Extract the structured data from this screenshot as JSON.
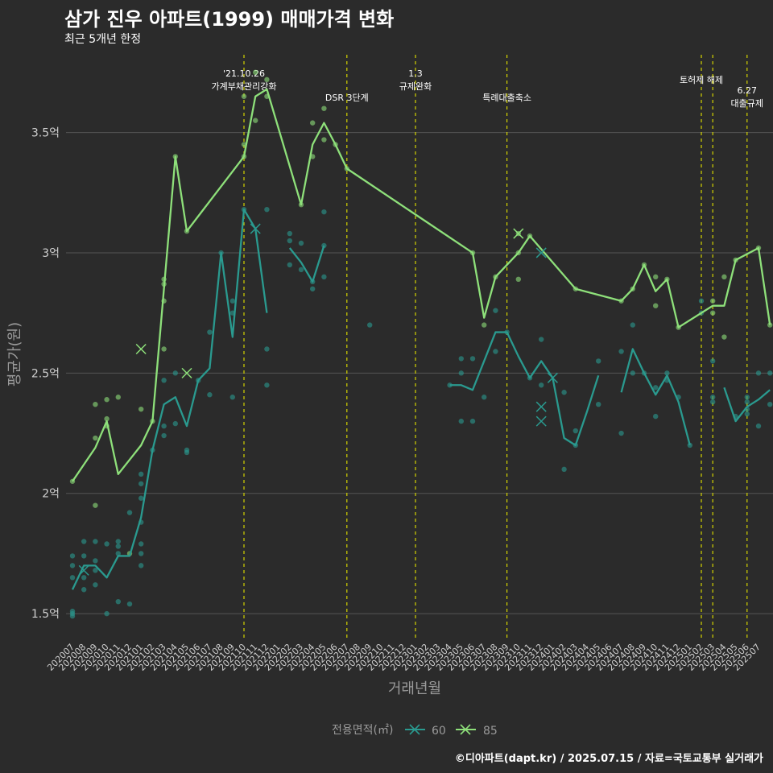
{
  "title": "삼가 진우 아파트(1999) 매매가격 변화",
  "subtitle": "최근 5개년 한정",
  "caption": "©디아파트(dapt.kr) / 2025.07.15 / 자료=국토교통부 실거래가",
  "colors": {
    "background": "#2b2b2b",
    "grid": "#555555",
    "series60": "#2a9a8f",
    "series85": "#8ee07a",
    "event_line": "#d4d400"
  },
  "chart_data": {
    "type": "line",
    "xlabel": "거래년월",
    "ylabel": "평균가(원)",
    "y_unit": "억",
    "ylim": [
      1.4,
      3.85
    ],
    "yticks": [
      1.5,
      2,
      2.5,
      3,
      3.5
    ],
    "ytick_labels": [
      "1.5억",
      "2억",
      "2.5억",
      "3억",
      "3.5억"
    ],
    "grid": true,
    "legend": {
      "title": "전용면적(㎡)",
      "position": "bottom",
      "entries": [
        "60",
        "85"
      ]
    },
    "categories": [
      "202007",
      "202008",
      "202009",
      "202010",
      "202011",
      "202012",
      "202101",
      "202102",
      "202103",
      "202104",
      "202105",
      "202106",
      "202107",
      "202108",
      "202109",
      "202110",
      "202111",
      "202112",
      "202201",
      "202202",
      "202203",
      "202204",
      "202205",
      "202206",
      "202207",
      "202208",
      "202209",
      "202210",
      "202211",
      "202212",
      "202301",
      "202302",
      "202303",
      "202304",
      "202305",
      "202306",
      "202307",
      "202308",
      "202309",
      "202310",
      "202311",
      "202312",
      "202401",
      "202402",
      "202403",
      "202404",
      "202405",
      "202406",
      "202407",
      "202408",
      "202409",
      "202410",
      "202411",
      "202412",
      "202501",
      "202502",
      "202503",
      "202504",
      "202505",
      "202506",
      "202507"
    ],
    "events": [
      {
        "x": "202110",
        "label": "'21.10.26\n가계부채관리강화"
      },
      {
        "x": "202207",
        "label": "DSR 3단계"
      },
      {
        "x": "202301",
        "label": "1.3\n규제완화"
      },
      {
        "x": "202309",
        "label": "특례대출축소"
      },
      {
        "x": "202502",
        "label": "토허제 해제"
      },
      {
        "x": "202503",
        "label": ""
      },
      {
        "x": "202506",
        "label": "6.27\n대출규제"
      }
    ],
    "series": [
      {
        "name": "60",
        "line": [
          [
            0,
            1.6
          ],
          [
            1,
            1.7
          ],
          [
            2,
            1.7
          ],
          [
            3,
            1.65
          ],
          [
            4,
            1.74
          ],
          [
            5,
            1.74
          ],
          [
            6,
            1.9
          ],
          [
            7,
            2.18
          ],
          [
            8,
            2.37
          ],
          [
            9,
            2.4
          ],
          [
            10,
            2.28
          ],
          [
            11,
            2.47
          ],
          [
            12,
            2.52
          ],
          [
            13,
            3.0
          ],
          [
            14,
            2.65
          ],
          [
            15,
            3.18
          ],
          [
            16,
            3.1
          ],
          [
            17,
            2.75
          ],
          null,
          [
            19,
            3.02
          ],
          [
            20,
            2.96
          ],
          [
            21,
            2.88
          ],
          [
            22,
            3.03
          ],
          null,
          [
            33,
            2.45
          ],
          [
            34,
            2.45
          ],
          [
            35,
            2.43
          ],
          [
            36,
            2.55
          ],
          [
            37,
            2.67
          ],
          [
            38,
            2.67
          ],
          [
            39,
            2.57
          ],
          [
            40,
            2.48
          ],
          [
            41,
            2.55
          ],
          [
            42,
            2.48
          ],
          [
            43,
            2.23
          ],
          [
            44,
            2.2
          ],
          [
            45,
            2.34
          ],
          [
            46,
            2.49
          ],
          null,
          [
            48,
            2.42
          ],
          [
            49,
            2.6
          ],
          [
            50,
            2.5
          ],
          [
            51,
            2.41
          ],
          [
            52,
            2.49
          ],
          [
            53,
            2.38
          ],
          [
            54,
            2.2
          ],
          null,
          [
            57,
            2.44
          ],
          [
            58,
            2.3
          ],
          [
            59,
            2.36
          ],
          [
            60,
            2.39
          ],
          [
            61,
            2.43
          ]
        ],
        "points": [
          [
            0,
            1.74
          ],
          [
            0,
            1.7
          ],
          [
            0,
            1.65
          ],
          [
            0,
            1.51
          ],
          [
            0,
            1.5
          ],
          [
            0,
            1.49
          ],
          [
            1,
            1.8
          ],
          [
            1,
            1.74
          ],
          [
            1,
            1.65
          ],
          [
            1,
            1.6
          ],
          [
            2,
            1.8
          ],
          [
            2,
            1.72
          ],
          [
            2,
            1.68
          ],
          [
            2,
            1.62
          ],
          [
            3,
            1.79
          ],
          [
            3,
            1.5
          ],
          [
            4,
            1.8
          ],
          [
            4,
            1.78
          ],
          [
            4,
            1.75
          ],
          [
            4,
            1.55
          ],
          [
            5,
            1.92
          ],
          [
            5,
            1.54
          ],
          [
            6,
            2.08
          ],
          [
            6,
            2.04
          ],
          [
            6,
            1.98
          ],
          [
            6,
            1.88
          ],
          [
            6,
            1.79
          ],
          [
            6,
            1.75
          ],
          [
            6,
            1.7
          ],
          [
            7,
            2.18
          ],
          [
            8,
            2.47
          ],
          [
            8,
            2.28
          ],
          [
            8,
            2.24
          ],
          [
            9,
            2.5
          ],
          [
            9,
            2.29
          ],
          [
            10,
            2.18
          ],
          [
            10,
            2.17
          ],
          [
            11,
            2.47
          ],
          [
            12,
            2.67
          ],
          [
            12,
            2.41
          ],
          [
            13,
            3.0
          ],
          [
            14,
            2.8
          ],
          [
            14,
            2.75
          ],
          [
            14,
            2.4
          ],
          [
            15,
            3.18
          ],
          [
            17,
            3.18
          ],
          [
            17,
            2.6
          ],
          [
            17,
            2.45
          ],
          [
            19,
            3.08
          ],
          [
            19,
            3.05
          ],
          [
            19,
            2.95
          ],
          [
            20,
            3.04
          ],
          [
            20,
            2.93
          ],
          [
            21,
            2.88
          ],
          [
            21,
            2.85
          ],
          [
            22,
            3.17
          ],
          [
            22,
            3.03
          ],
          [
            22,
            2.9
          ],
          [
            26,
            2.7
          ],
          [
            33,
            2.45
          ],
          [
            34,
            2.56
          ],
          [
            34,
            2.5
          ],
          [
            34,
            2.3
          ],
          [
            35,
            2.56
          ],
          [
            35,
            2.3
          ],
          [
            36,
            2.4
          ],
          [
            37,
            2.76
          ],
          [
            37,
            2.59
          ],
          [
            38,
            2.67
          ],
          [
            40,
            2.48
          ],
          [
            41,
            2.64
          ],
          [
            41,
            2.45
          ],
          [
            43,
            2.42
          ],
          [
            43,
            2.1
          ],
          [
            44,
            2.26
          ],
          [
            44,
            2.2
          ],
          [
            46,
            2.55
          ],
          [
            46,
            2.37
          ],
          [
            48,
            2.59
          ],
          [
            48,
            2.25
          ],
          [
            49,
            2.7
          ],
          [
            49,
            2.5
          ],
          [
            50,
            2.5
          ],
          [
            51,
            2.44
          ],
          [
            51,
            2.32
          ],
          [
            52,
            2.5
          ],
          [
            52,
            2.47
          ],
          [
            53,
            2.4
          ],
          [
            54,
            2.2
          ],
          [
            55,
            2.8
          ],
          [
            55,
            2.75
          ],
          [
            56,
            2.55
          ],
          [
            56,
            2.4
          ],
          [
            56,
            2.38
          ],
          [
            58,
            2.32
          ],
          [
            59,
            2.4
          ],
          [
            59,
            2.38
          ],
          [
            59,
            2.35
          ],
          [
            59,
            2.33
          ],
          [
            60,
            2.5
          ],
          [
            60,
            2.28
          ],
          [
            61,
            2.5
          ],
          [
            61,
            2.37
          ]
        ],
        "x_marks": [
          [
            1,
            1.68
          ],
          [
            16,
            3.1
          ],
          [
            41,
            3.0
          ],
          [
            41,
            2.36
          ],
          [
            41,
            2.3
          ],
          [
            42,
            2.48
          ]
        ]
      },
      {
        "name": "85",
        "line": [
          [
            0,
            2.05
          ],
          [
            1,
            2.12
          ],
          [
            2,
            2.19
          ],
          [
            3,
            2.3
          ],
          [
            4,
            2.08
          ],
          [
            5,
            2.14
          ],
          [
            6,
            2.2
          ],
          [
            7,
            2.3
          ],
          [
            8,
            2.85
          ],
          [
            9,
            3.4
          ],
          [
            10,
            3.09
          ],
          [
            15,
            3.4
          ],
          [
            16,
            3.65
          ],
          [
            17,
            3.68
          ],
          [
            20,
            3.2
          ],
          [
            21,
            3.45
          ],
          [
            22,
            3.54
          ],
          [
            23,
            3.45
          ],
          [
            24,
            3.35
          ],
          [
            35,
            3.0
          ],
          [
            36,
            2.73
          ],
          [
            37,
            2.9
          ],
          [
            39,
            3.0
          ],
          [
            40,
            3.07
          ],
          [
            44,
            2.85
          ],
          [
            48,
            2.8
          ],
          [
            49,
            2.85
          ],
          [
            50,
            2.95
          ],
          [
            51,
            2.84
          ],
          [
            52,
            2.89
          ],
          [
            53,
            2.69
          ],
          [
            56,
            2.78
          ],
          [
            57,
            2.78
          ],
          [
            58,
            2.97
          ],
          [
            60,
            3.02
          ],
          [
            61,
            2.7
          ]
        ],
        "points": [
          [
            0,
            2.05
          ],
          [
            2,
            2.37
          ],
          [
            2,
            2.23
          ],
          [
            2,
            1.95
          ],
          [
            3,
            2.39
          ],
          [
            3,
            2.31
          ],
          [
            3,
            2.28
          ],
          [
            4,
            2.4
          ],
          [
            5,
            1.75
          ],
          [
            6,
            2.35
          ],
          [
            7,
            2.3
          ],
          [
            8,
            2.89
          ],
          [
            8,
            2.87
          ],
          [
            8,
            2.8
          ],
          [
            8,
            2.6
          ],
          [
            9,
            3.4
          ],
          [
            10,
            3.09
          ],
          [
            15,
            3.65
          ],
          [
            15,
            3.45
          ],
          [
            15,
            3.4
          ],
          [
            16,
            3.75
          ],
          [
            16,
            3.55
          ],
          [
            17,
            3.72
          ],
          [
            17,
            3.65
          ],
          [
            20,
            3.2
          ],
          [
            21,
            3.54
          ],
          [
            21,
            3.4
          ],
          [
            22,
            3.6
          ],
          [
            22,
            3.47
          ],
          [
            23,
            3.45
          ],
          [
            24,
            3.35
          ],
          [
            35,
            3.0
          ],
          [
            36,
            2.7
          ],
          [
            37,
            2.9
          ],
          [
            39,
            3.08
          ],
          [
            39,
            3.0
          ],
          [
            39,
            2.89
          ],
          [
            40,
            3.07
          ],
          [
            44,
            2.85
          ],
          [
            48,
            2.8
          ],
          [
            49,
            2.85
          ],
          [
            50,
            2.95
          ],
          [
            51,
            2.9
          ],
          [
            51,
            2.78
          ],
          [
            52,
            2.89
          ],
          [
            53,
            2.69
          ],
          [
            56,
            2.8
          ],
          [
            56,
            2.75
          ],
          [
            57,
            2.9
          ],
          [
            57,
            2.65
          ],
          [
            58,
            2.97
          ],
          [
            60,
            3.02
          ],
          [
            61,
            2.7
          ]
        ],
        "x_marks": [
          [
            6,
            2.6
          ],
          [
            10,
            2.5
          ],
          [
            39,
            3.08
          ]
        ]
      }
    ]
  }
}
